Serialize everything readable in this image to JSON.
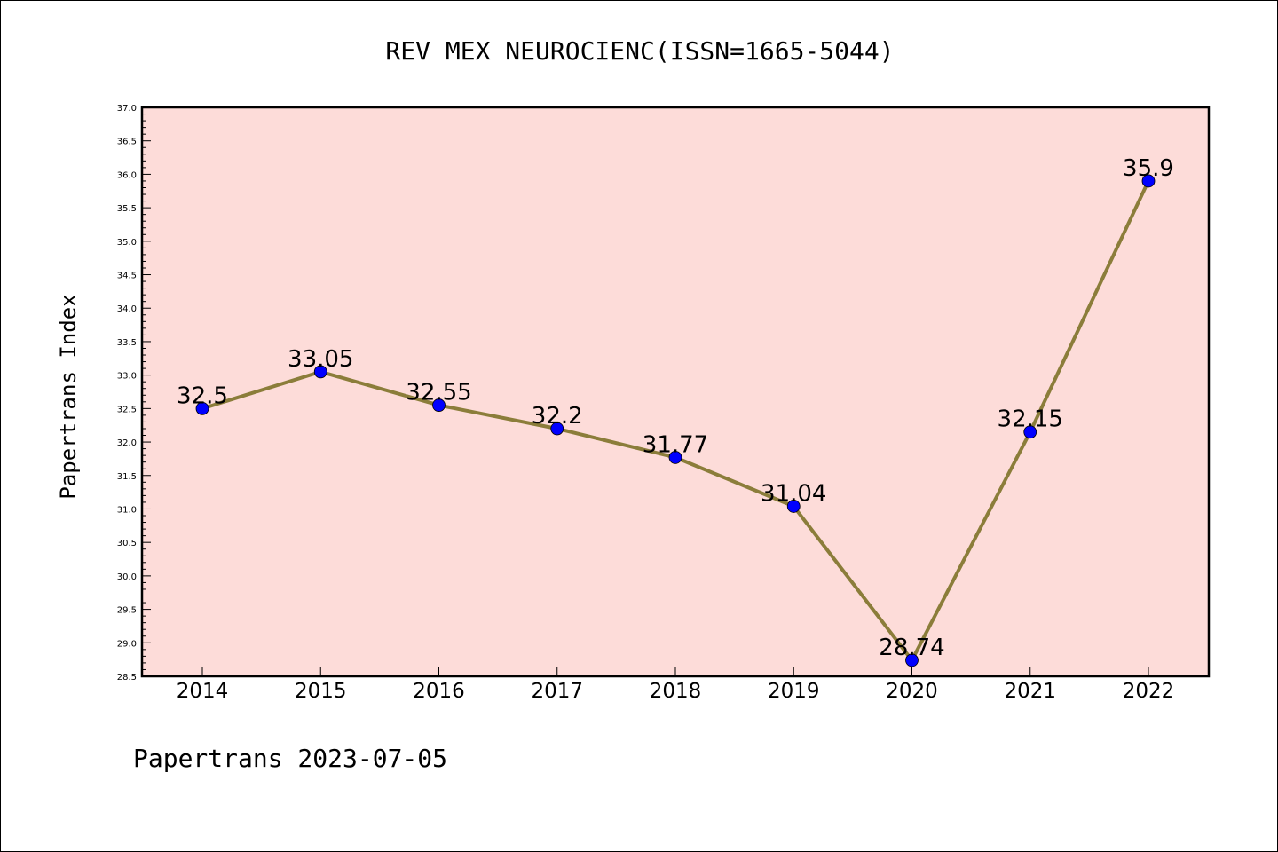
{
  "chart_data": {
    "type": "line",
    "title": "REV MEX NEUROCIENC(ISSN=1665-5044)",
    "ylabel": "Papertrans Index",
    "xlabel": "",
    "footer": "Papertrans 2023-07-05",
    "x": [
      "2014",
      "2015",
      "2016",
      "2017",
      "2018",
      "2019",
      "2020",
      "2021",
      "2022"
    ],
    "series": [
      {
        "values": [
          32.5,
          33.05,
          32.55,
          32.2,
          31.77,
          31.04,
          28.74,
          32.15,
          35.9
        ],
        "labels": [
          "32.5",
          "33.05",
          "32.55",
          "32.2",
          "31.77",
          "31.04",
          "28.74",
          "32.15",
          "35.9"
        ],
        "line_color": "#8b7d3a",
        "marker_color": "#0000ff"
      }
    ],
    "ylim": [
      28.5,
      37.0
    ],
    "y_tick_step": 0.5,
    "plot_background": "#fddcd9",
    "grid": false,
    "legend": "none"
  }
}
